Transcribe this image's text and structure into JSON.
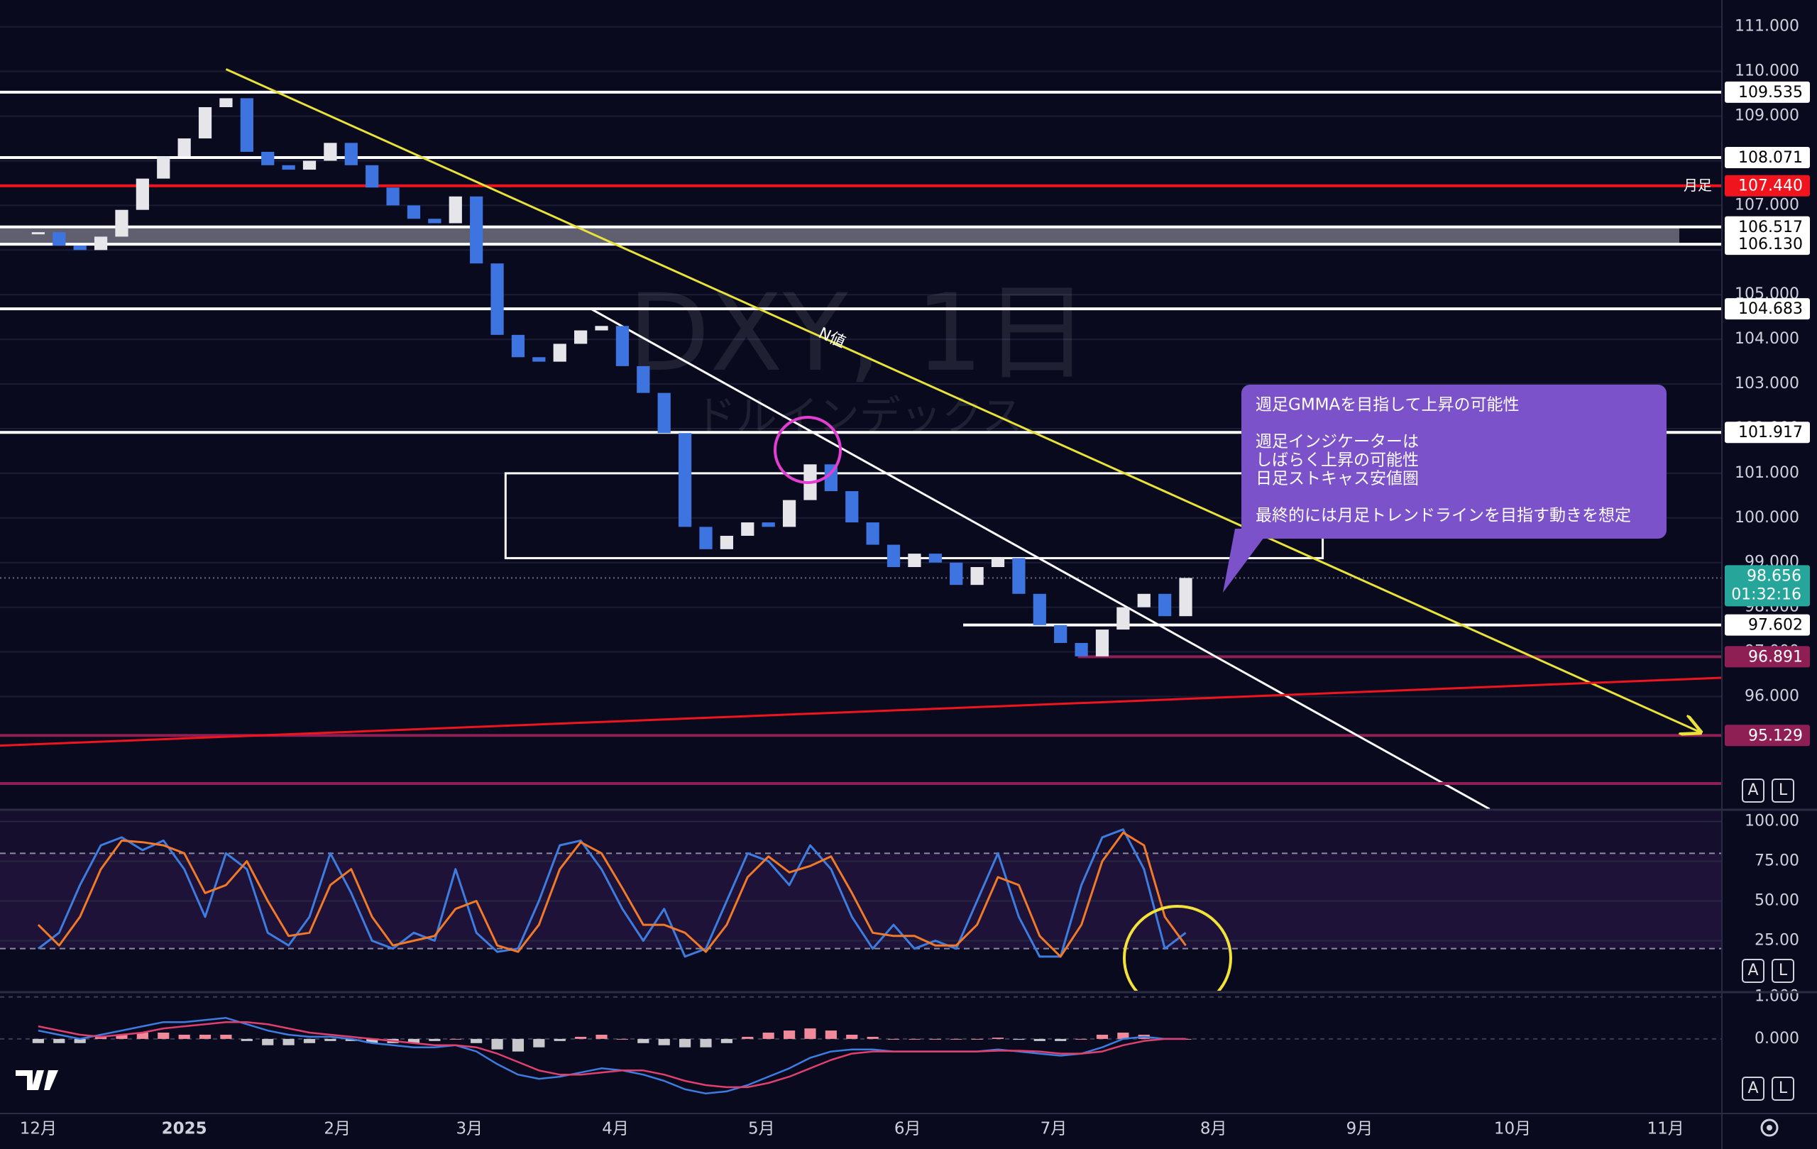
{
  "chart_data": [
    {
      "type": "candlestick",
      "title": "DXY, 1日",
      "subtitle": "ドルインデックス",
      "x": [
        0,
        3,
        6,
        9,
        12,
        15,
        18,
        21,
        24,
        27,
        30,
        33,
        36,
        39,
        42,
        45,
        48,
        51,
        54,
        57,
        60,
        63,
        66,
        69,
        72,
        75,
        78,
        81,
        84,
        87,
        90,
        93,
        96,
        99,
        102,
        105,
        108,
        111,
        114,
        117,
        120,
        123,
        126,
        129,
        132,
        135,
        138,
        141,
        144,
        147,
        150,
        153,
        156,
        159,
        162,
        165
      ],
      "values": [
        106.4,
        106.1,
        106.0,
        106.3,
        106.9,
        107.6,
        108.1,
        108.5,
        109.2,
        109.4,
        108.2,
        107.9,
        107.8,
        108.0,
        108.4,
        107.9,
        107.4,
        107.0,
        106.7,
        106.6,
        107.2,
        105.7,
        104.1,
        103.6,
        103.5,
        103.9,
        104.2,
        104.3,
        103.4,
        102.8,
        101.9,
        99.8,
        99.3,
        99.6,
        99.9,
        99.8,
        100.4,
        101.2,
        100.6,
        99.9,
        99.4,
        98.9,
        99.2,
        99.0,
        98.5,
        98.9,
        99.1,
        98.3,
        97.6,
        97.2,
        96.9,
        97.5,
        98.0,
        98.3,
        97.8,
        98.656
      ],
      "up_color": "#e6e6ea",
      "down_color": "#3d74e0",
      "xlim": [
        -5.5,
        242
      ],
      "ylim": [
        93.48,
        111.6
      ],
      "xticks": [
        {
          "value": 0,
          "label": "12月"
        },
        {
          "value": 21,
          "label": "2025"
        },
        {
          "value": 43,
          "label": "2月"
        },
        {
          "value": 62,
          "label": "3月"
        },
        {
          "value": 83,
          "label": "4月"
        },
        {
          "value": 104,
          "label": "5月"
        },
        {
          "value": 125,
          "label": "6月"
        },
        {
          "value": 146,
          "label": "7月"
        },
        {
          "value": 169,
          "label": "8月"
        },
        {
          "value": 190,
          "label": "9月"
        },
        {
          "value": 212,
          "label": "10月"
        },
        {
          "value": 234,
          "label": "11月"
        }
      ],
      "yticks": [
        {
          "value": 96,
          "label": "96.000"
        },
        {
          "value": 97,
          "label": "97.000"
        },
        {
          "value": 98,
          "label": "98.000"
        },
        {
          "value": 99,
          "label": "99.000"
        },
        {
          "value": 100,
          "label": "100.000"
        },
        {
          "value": 101,
          "label": "101.000"
        },
        {
          "value": 102,
          "label": "102.000"
        },
        {
          "value": 103,
          "label": "103.000"
        },
        {
          "value": 104,
          "label": "104.000"
        },
        {
          "value": 105,
          "label": "105.000"
        },
        {
          "value": 106,
          "label": "106.000"
        },
        {
          "value": 107,
          "label": "107.000"
        },
        {
          "value": 108,
          "label": "108.000"
        },
        {
          "value": 109,
          "label": "109.000"
        },
        {
          "value": 110,
          "label": "110.000"
        },
        {
          "value": 111,
          "label": "111.000"
        }
      ],
      "grid": true,
      "levels": [
        {
          "value": 109.535,
          "label": "109.535",
          "color": "#ffffff",
          "text_color": "#000000"
        },
        {
          "value": 108.071,
          "label": "108.071",
          "color": "#ffffff",
          "text_color": "#000000"
        },
        {
          "value": 107.44,
          "label": "107.440",
          "color": "#f0141e",
          "text_color": "#ffffff",
          "note": "月足"
        },
        {
          "value": 106.517,
          "label": "106.517",
          "color": "#ffffff",
          "text_color": "#000000"
        },
        {
          "value": 106.13,
          "label": "106.130",
          "color": "#ffffff",
          "text_color": "#000000"
        },
        {
          "value": 104.683,
          "label": "104.683",
          "color": "#ffffff",
          "text_color": "#000000"
        },
        {
          "value": 101.917,
          "label": "101.917",
          "color": "#ffffff",
          "text_color": "#000000"
        },
        {
          "value": 97.602,
          "label": "97.602",
          "color": "#ffffff",
          "text_color": "#000000",
          "from": 133
        },
        {
          "value": 96.891,
          "label": "96.891",
          "color": "#8e1f55",
          "text_color": "#ffffff",
          "from": 149.5
        },
        {
          "value": 95.129,
          "label": "95.129",
          "color": "#8e1f55",
          "text_color": "#ffffff"
        }
      ],
      "trendlines": [
        {
          "color": "#e8e23a",
          "label": "N値",
          "points": [
            [
              27,
              110.05
            ],
            [
              239,
              95.2
            ]
          ]
        },
        {
          "color": "#ffffff",
          "points": [
            [
              79.5,
              104.68
            ],
            [
              208.7,
              93.48
            ]
          ]
        },
        {
          "color": "#f0141e",
          "points": [
            [
              -5.5,
              94.9
            ],
            [
              242,
              96.42
            ]
          ]
        }
      ],
      "zones": [
        {
          "x": [
            67.2,
            184.7
          ],
          "y": [
            99.1,
            101.0
          ],
          "color": "#ffffff"
        }
      ],
      "current": {
        "value": 98.656,
        "label": "98.656",
        "countdown": "01:32:16",
        "color": "#26a69a"
      },
      "annotation": {
        "color": "#7b52c9",
        "paragraphs": [
          [
            "週足GMMAを目指して上昇の可能性"
          ],
          [
            "週足インジケーターは",
            "しばらく上昇の可能性",
            "日足ストキャス安値圏"
          ],
          [
            "最終的には月足トレンドラインを目指す動きを想定"
          ]
        ]
      }
    },
    {
      "type": "line",
      "x": [
        0,
        3,
        6,
        9,
        12,
        15,
        18,
        21,
        24,
        27,
        30,
        33,
        36,
        39,
        42,
        45,
        48,
        51,
        54,
        57,
        60,
        63,
        66,
        69,
        72,
        75,
        78,
        81,
        84,
        87,
        90,
        93,
        96,
        99,
        102,
        105,
        108,
        111,
        114,
        117,
        120,
        123,
        126,
        129,
        132,
        135,
        138,
        141,
        144,
        147,
        150,
        153,
        156,
        159,
        162,
        165
      ],
      "series": [
        {
          "color": "#3d7de0",
          "values": [
            20,
            30,
            60,
            85,
            90,
            82,
            88,
            70,
            40,
            80,
            70,
            30,
            22,
            40,
            80,
            55,
            25,
            20,
            30,
            25,
            70,
            30,
            18,
            20,
            50,
            85,
            88,
            70,
            45,
            25,
            45,
            15,
            20,
            50,
            80,
            75,
            60,
            85,
            70,
            40,
            20,
            35,
            20,
            25,
            20,
            50,
            80,
            40,
            15,
            15,
            60,
            90,
            95,
            70,
            20,
            30
          ]
        },
        {
          "color": "#f07a28",
          "values": [
            35,
            22,
            40,
            70,
            88,
            87,
            85,
            80,
            55,
            60,
            75,
            50,
            28,
            30,
            60,
            70,
            40,
            22,
            25,
            28,
            45,
            50,
            22,
            18,
            35,
            70,
            87,
            80,
            58,
            35,
            35,
            30,
            18,
            35,
            65,
            78,
            68,
            72,
            78,
            55,
            30,
            28,
            28,
            22,
            22,
            35,
            65,
            60,
            28,
            15,
            35,
            75,
            93,
            85,
            40,
            22
          ]
        }
      ],
      "band": [
        20,
        80
      ],
      "ylim": [
        -6.5,
        106.5
      ],
      "yticks": [
        {
          "value": 25,
          "label": "25.00"
        },
        {
          "value": 50,
          "label": "50.00"
        },
        {
          "value": 75,
          "label": "75.00"
        },
        {
          "value": 100,
          "label": "100.00"
        }
      ]
    },
    {
      "type": "macd",
      "x": [
        0,
        3,
        6,
        9,
        12,
        15,
        18,
        21,
        24,
        27,
        30,
        33,
        36,
        39,
        42,
        45,
        48,
        51,
        54,
        57,
        60,
        63,
        66,
        69,
        72,
        75,
        78,
        81,
        84,
        87,
        90,
        93,
        96,
        99,
        102,
        105,
        108,
        111,
        114,
        117,
        120,
        123,
        126,
        129,
        132,
        135,
        138,
        141,
        144,
        147,
        150,
        153,
        156,
        159,
        162,
        165
      ],
      "series": [
        {
          "color": "#3d7de0",
          "values": [
            0.2,
            0.1,
            0,
            0.1,
            0.2,
            0.3,
            0.4,
            0.4,
            0.45,
            0.5,
            0.35,
            0.2,
            0.1,
            0.05,
            0.05,
            0,
            -0.1,
            -0.15,
            -0.2,
            -0.2,
            -0.15,
            -0.3,
            -0.6,
            -0.85,
            -0.95,
            -0.9,
            -0.8,
            -0.7,
            -0.75,
            -0.85,
            -1.0,
            -1.2,
            -1.3,
            -1.25,
            -1.1,
            -0.9,
            -0.7,
            -0.45,
            -0.3,
            -0.25,
            -0.25,
            -0.3,
            -0.3,
            -0.3,
            -0.3,
            -0.3,
            -0.25,
            -0.3,
            -0.35,
            -0.4,
            -0.35,
            -0.2,
            0,
            0.05,
            0,
            0
          ]
        },
        {
          "color": "#e0406e",
          "values": [
            0.3,
            0.2,
            0.1,
            0.05,
            0.1,
            0.15,
            0.25,
            0.3,
            0.35,
            0.4,
            0.4,
            0.35,
            0.25,
            0.15,
            0.1,
            0.05,
            0,
            -0.05,
            -0.1,
            -0.15,
            -0.15,
            -0.2,
            -0.35,
            -0.55,
            -0.75,
            -0.85,
            -0.85,
            -0.8,
            -0.75,
            -0.75,
            -0.85,
            -1.0,
            -1.1,
            -1.15,
            -1.15,
            -1.05,
            -0.9,
            -0.7,
            -0.5,
            -0.35,
            -0.3,
            -0.3,
            -0.3,
            -0.3,
            -0.3,
            -0.3,
            -0.28,
            -0.28,
            -0.3,
            -0.35,
            -0.35,
            -0.3,
            -0.15,
            -0.05,
            0,
            0
          ]
        }
      ],
      "histogram": [
        -0.1,
        -0.1,
        -0.1,
        0.05,
        0.1,
        0.15,
        0.15,
        0.1,
        0.1,
        0.1,
        -0.05,
        -0.15,
        -0.15,
        -0.1,
        -0.05,
        -0.05,
        -0.1,
        -0.1,
        -0.1,
        -0.05,
        0,
        -0.1,
        -0.25,
        -0.3,
        -0.2,
        -0.05,
        0.05,
        0.1,
        0,
        -0.1,
        -0.15,
        -0.2,
        -0.2,
        -0.1,
        0.05,
        0.15,
        0.2,
        0.25,
        0.2,
        0.1,
        0.05,
        0,
        0,
        0,
        0,
        0,
        0.03,
        -0.02,
        -0.05,
        -0.05,
        0,
        0.1,
        0.15,
        0.1,
        0,
        0
      ],
      "histogram_colors": [
        "#f08a9a",
        "#c8c8cc"
      ],
      "ylim": [
        -1.76,
        1.08
      ],
      "yticks": [
        {
          "value": 0,
          "label": "0.000"
        },
        {
          "value": 1,
          "label": "1.000"
        }
      ]
    }
  ]
}
